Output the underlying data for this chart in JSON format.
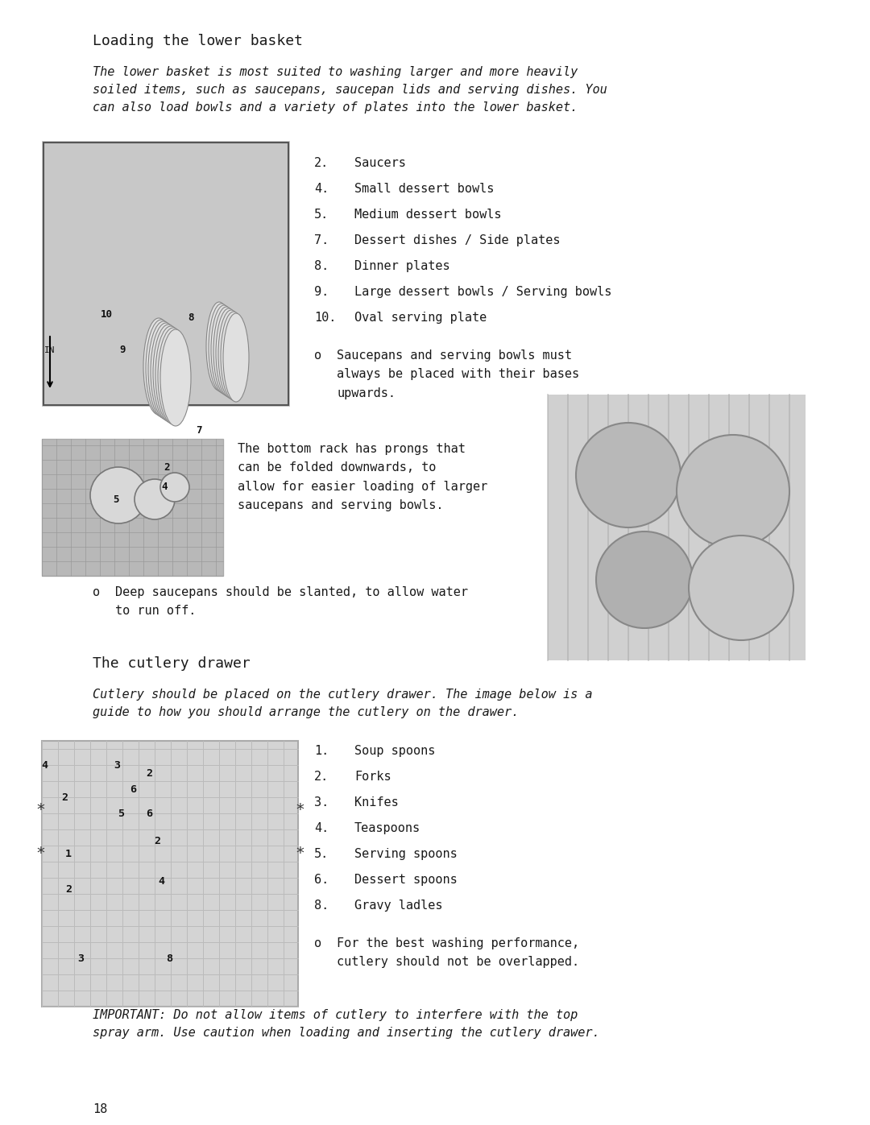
{
  "bg_color": "#ffffff",
  "page_number": "18",
  "title": "Loading the lower basket",
  "title_fontsize": 13,
  "title_font": "monospace",
  "intro_text": "The lower basket is most suited to washing larger and more heavily\nsoiled items, such as saucepans, saucepan lids and serving dishes. You\ncan also load bowls and a variety of plates into the lower basket.",
  "intro_fontsize": 11.5,
  "list1": [
    [
      "2.",
      "Saucers"
    ],
    [
      "4.",
      "Small dessert bowls"
    ],
    [
      "5.",
      "Medium dessert bowls"
    ],
    [
      "7.",
      "Dessert dishes / Side plates"
    ],
    [
      "8.",
      "Dinner plates"
    ],
    [
      "9.",
      "Large dessert bowls / Serving bowls"
    ],
    [
      "10.",
      "Oval serving plate"
    ]
  ],
  "bullet1": "Saucepans and serving bowls must\nalways be placed with their bases\nupwards.",
  "mid_text": "The bottom rack has prongs that\ncan be folded downwards, to\nallow for easier loading of larger\nsaucepans and serving bowls.",
  "bullet2": "Deep saucepans should be slanted, to allow water\nto run off.",
  "section2_title": "The cutlery drawer",
  "section2_intro": "Cutlery should be placed on the cutlery drawer. The image below is a\nguide to how you should arrange the cutlery on the drawer.",
  "list2": [
    [
      "1.",
      "Soup spoons"
    ],
    [
      "2.",
      "Forks"
    ],
    [
      "3.",
      "Knifes"
    ],
    [
      "4.",
      "Teaspoons"
    ],
    [
      "5.",
      "Serving spoons"
    ],
    [
      "6.",
      "Dessert spoons"
    ],
    [
      "8.",
      "Gravy ladles"
    ]
  ],
  "bullet3": "For the best washing performance,\ncutlery should not be overlapped.",
  "important_text": "IMPORTANT: Do not allow items of cutlery to interfere with the top\nspray arm. Use caution when loading and inserting the cutlery drawer.",
  "text_color": "#1a1a1a",
  "mono_color": "#222222"
}
